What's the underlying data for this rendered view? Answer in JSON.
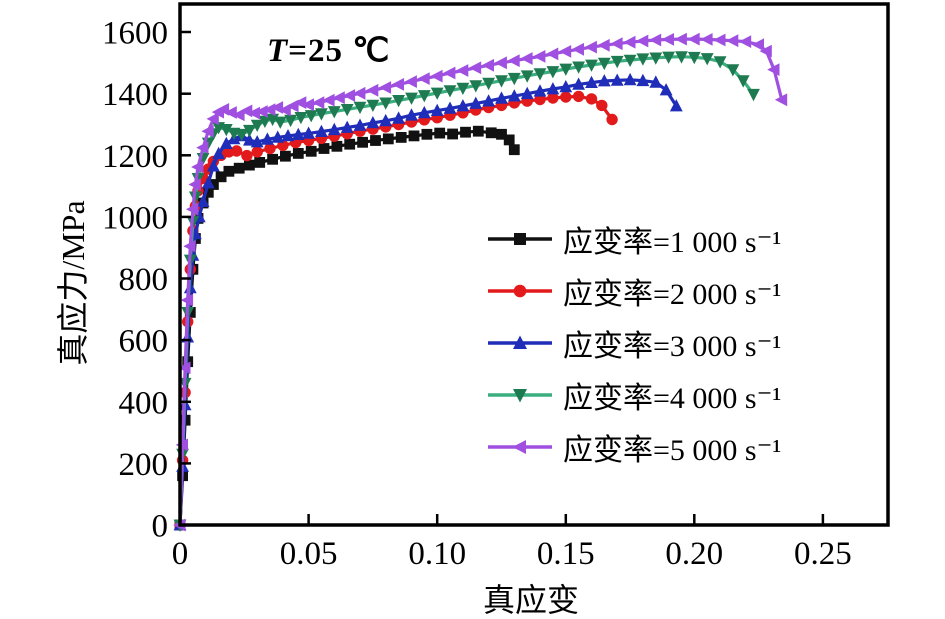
{
  "figure": {
    "annotation": {
      "t": "T",
      "rest": "=25 ℃"
    }
  },
  "chart_data": {
    "type": "line",
    "title": "",
    "annotation": "T=25 ℃",
    "xlabel": "真应变",
    "ylabel": "真应力/MPa",
    "xlim": [
      0,
      0.2753
    ],
    "ylim": [
      0,
      1691
    ],
    "grid": false,
    "legend_position": "center-right",
    "x_ticks": [
      0,
      0.05,
      0.1,
      0.15,
      0.2,
      0.25
    ],
    "x_tick_labels": [
      "0",
      "0.05",
      "0.10",
      "0.15",
      "0.20",
      "0.25"
    ],
    "y_ticks": [
      0,
      200,
      400,
      600,
      800,
      1000,
      1200,
      1400,
      1600
    ],
    "y_tick_labels": [
      "0",
      "200",
      "400",
      "600",
      "800",
      "1000",
      "1200",
      "1400",
      "1600"
    ],
    "series": [
      {
        "name": "strain-rate-1000",
        "label": "应变率=1 000 s⁻¹",
        "color": "#111111",
        "marker": "square",
        "marker_color": "#111111",
        "points": [
          [
            0,
            0
          ],
          [
            0.001,
            160
          ],
          [
            0.002,
            340
          ],
          [
            0.003,
            530
          ],
          [
            0.004,
            690
          ],
          [
            0.005,
            830
          ],
          [
            0.006,
            930
          ],
          [
            0.007,
            995
          ],
          [
            0.009,
            1045
          ],
          [
            0.011,
            1080
          ],
          [
            0.013,
            1105
          ],
          [
            0.016,
            1130
          ],
          [
            0.019,
            1148
          ],
          [
            0.023,
            1158
          ],
          [
            0.027,
            1168
          ],
          [
            0.031,
            1177
          ],
          [
            0.036,
            1187
          ],
          [
            0.041,
            1197
          ],
          [
            0.046,
            1206
          ],
          [
            0.051,
            1213
          ],
          [
            0.056,
            1222
          ],
          [
            0.061,
            1229
          ],
          [
            0.066,
            1236
          ],
          [
            0.071,
            1242
          ],
          [
            0.076,
            1248
          ],
          [
            0.081,
            1253
          ],
          [
            0.086,
            1258
          ],
          [
            0.091,
            1263
          ],
          [
            0.096,
            1268
          ],
          [
            0.101,
            1272
          ],
          [
            0.106,
            1269
          ],
          [
            0.111,
            1275
          ],
          [
            0.116,
            1278
          ],
          [
            0.121,
            1273
          ],
          [
            0.125,
            1268
          ],
          [
            0.128,
            1250
          ],
          [
            0.13,
            1218
          ]
        ]
      },
      {
        "name": "strain-rate-2000",
        "label": "应变率=2 000 s⁻¹",
        "color": "#e31a1c",
        "marker": "circle",
        "marker_color": "#e31a1c",
        "points": [
          [
            0,
            0
          ],
          [
            0.001,
            210
          ],
          [
            0.002,
            430
          ],
          [
            0.003,
            660
          ],
          [
            0.004,
            830
          ],
          [
            0.005,
            955
          ],
          [
            0.006,
            1035
          ],
          [
            0.007,
            1085
          ],
          [
            0.009,
            1125
          ],
          [
            0.011,
            1155
          ],
          [
            0.013,
            1180
          ],
          [
            0.016,
            1200
          ],
          [
            0.019,
            1211
          ],
          [
            0.022,
            1214
          ],
          [
            0.026,
            1199
          ],
          [
            0.03,
            1211
          ],
          [
            0.035,
            1222
          ],
          [
            0.04,
            1232
          ],
          [
            0.045,
            1241
          ],
          [
            0.05,
            1248
          ],
          [
            0.055,
            1255
          ],
          [
            0.06,
            1262
          ],
          [
            0.065,
            1270
          ],
          [
            0.07,
            1278
          ],
          [
            0.075,
            1285
          ],
          [
            0.08,
            1292
          ],
          [
            0.085,
            1300
          ],
          [
            0.09,
            1308
          ],
          [
            0.095,
            1315
          ],
          [
            0.1,
            1322
          ],
          [
            0.105,
            1330
          ],
          [
            0.11,
            1338
          ],
          [
            0.115,
            1347
          ],
          [
            0.12,
            1355
          ],
          [
            0.125,
            1362
          ],
          [
            0.13,
            1370
          ],
          [
            0.135,
            1376
          ],
          [
            0.14,
            1381
          ],
          [
            0.145,
            1386
          ],
          [
            0.15,
            1389
          ],
          [
            0.155,
            1391
          ],
          [
            0.16,
            1383
          ],
          [
            0.164,
            1362
          ],
          [
            0.168,
            1316
          ]
        ]
      },
      {
        "name": "strain-rate-3000",
        "label": "应变率=3 000 s⁻¹",
        "color": "#1f2db8",
        "marker": "triangle-up",
        "marker_color": "#1f2db8",
        "points": [
          [
            0,
            0
          ],
          [
            0.001,
            190
          ],
          [
            0.002,
            390
          ],
          [
            0.003,
            610
          ],
          [
            0.004,
            770
          ],
          [
            0.005,
            875
          ],
          [
            0.006,
            945
          ],
          [
            0.0075,
            1000
          ],
          [
            0.009,
            1050
          ],
          [
            0.011,
            1110
          ],
          [
            0.013,
            1165
          ],
          [
            0.015,
            1205
          ],
          [
            0.018,
            1238
          ],
          [
            0.021,
            1253
          ],
          [
            0.024,
            1263
          ],
          [
            0.027,
            1249
          ],
          [
            0.03,
            1243
          ],
          [
            0.034,
            1252
          ],
          [
            0.038,
            1258
          ],
          [
            0.042,
            1263
          ],
          [
            0.046,
            1267
          ],
          [
            0.05,
            1271
          ],
          [
            0.055,
            1277
          ],
          [
            0.06,
            1283
          ],
          [
            0.065,
            1290
          ],
          [
            0.07,
            1297
          ],
          [
            0.075,
            1305
          ],
          [
            0.08,
            1312
          ],
          [
            0.085,
            1320
          ],
          [
            0.09,
            1330
          ],
          [
            0.095,
            1338
          ],
          [
            0.1,
            1345
          ],
          [
            0.105,
            1352
          ],
          [
            0.11,
            1360
          ],
          [
            0.115,
            1368
          ],
          [
            0.12,
            1376
          ],
          [
            0.125,
            1385
          ],
          [
            0.13,
            1392
          ],
          [
            0.135,
            1400
          ],
          [
            0.14,
            1408
          ],
          [
            0.145,
            1415
          ],
          [
            0.15,
            1422
          ],
          [
            0.155,
            1430
          ],
          [
            0.16,
            1436
          ],
          [
            0.165,
            1441
          ],
          [
            0.17,
            1443
          ],
          [
            0.175,
            1445
          ],
          [
            0.18,
            1442
          ],
          [
            0.185,
            1437
          ],
          [
            0.189,
            1412
          ],
          [
            0.193,
            1360
          ]
        ]
      },
      {
        "name": "strain-rate-4000",
        "label": "应变率=4 000 s⁻¹",
        "color": "#3aae7e",
        "marker": "triangle-down",
        "marker_color": "#1e7a50",
        "points": [
          [
            0,
            0
          ],
          [
            0.001,
            230
          ],
          [
            0.002,
            460
          ],
          [
            0.003,
            690
          ],
          [
            0.004,
            860
          ],
          [
            0.005,
            985
          ],
          [
            0.006,
            1065
          ],
          [
            0.007,
            1125
          ],
          [
            0.009,
            1190
          ],
          [
            0.011,
            1240
          ],
          [
            0.013,
            1270
          ],
          [
            0.015,
            1290
          ],
          [
            0.018,
            1284
          ],
          [
            0.021,
            1272
          ],
          [
            0.024,
            1268
          ],
          [
            0.027,
            1281
          ],
          [
            0.03,
            1298
          ],
          [
            0.033,
            1311
          ],
          [
            0.036,
            1317
          ],
          [
            0.039,
            1308
          ],
          [
            0.043,
            1314
          ],
          [
            0.047,
            1323
          ],
          [
            0.051,
            1329
          ],
          [
            0.055,
            1335
          ],
          [
            0.06,
            1342
          ],
          [
            0.065,
            1349
          ],
          [
            0.07,
            1356
          ],
          [
            0.075,
            1363
          ],
          [
            0.08,
            1370
          ],
          [
            0.085,
            1378
          ],
          [
            0.09,
            1386
          ],
          [
            0.095,
            1394
          ],
          [
            0.1,
            1402
          ],
          [
            0.105,
            1410
          ],
          [
            0.11,
            1418
          ],
          [
            0.115,
            1426
          ],
          [
            0.12,
            1434
          ],
          [
            0.125,
            1442
          ],
          [
            0.13,
            1450
          ],
          [
            0.135,
            1458
          ],
          [
            0.14,
            1465
          ],
          [
            0.145,
            1472
          ],
          [
            0.15,
            1480
          ],
          [
            0.155,
            1487
          ],
          [
            0.16,
            1493
          ],
          [
            0.165,
            1499
          ],
          [
            0.17,
            1505
          ],
          [
            0.175,
            1509
          ],
          [
            0.18,
            1513
          ],
          [
            0.185,
            1516
          ],
          [
            0.19,
            1519
          ],
          [
            0.195,
            1520
          ],
          [
            0.2,
            1518
          ],
          [
            0.205,
            1514
          ],
          [
            0.21,
            1504
          ],
          [
            0.215,
            1478
          ],
          [
            0.219,
            1442
          ],
          [
            0.223,
            1398
          ]
        ]
      },
      {
        "name": "strain-rate-5000",
        "label": "应变率=5 000 s⁻¹",
        "color": "#a050e0",
        "marker": "triangle-left",
        "marker_color": "#a050e0",
        "points": [
          [
            0,
            0
          ],
          [
            0.001,
            260
          ],
          [
            0.002,
            510
          ],
          [
            0.003,
            730
          ],
          [
            0.004,
            905
          ],
          [
            0.005,
            1025
          ],
          [
            0.006,
            1105
          ],
          [
            0.007,
            1162
          ],
          [
            0.009,
            1225
          ],
          [
            0.011,
            1278
          ],
          [
            0.013,
            1318
          ],
          [
            0.015,
            1340
          ],
          [
            0.017,
            1349
          ],
          [
            0.02,
            1339
          ],
          [
            0.023,
            1331
          ],
          [
            0.026,
            1344
          ],
          [
            0.029,
            1337
          ],
          [
            0.032,
            1342
          ],
          [
            0.035,
            1348
          ],
          [
            0.038,
            1355
          ],
          [
            0.041,
            1347
          ],
          [
            0.044,
            1360
          ],
          [
            0.047,
            1371
          ],
          [
            0.05,
            1364
          ],
          [
            0.054,
            1371
          ],
          [
            0.058,
            1379
          ],
          [
            0.062,
            1387
          ],
          [
            0.066,
            1394
          ],
          [
            0.07,
            1401
          ],
          [
            0.075,
            1411
          ],
          [
            0.08,
            1420
          ],
          [
            0.085,
            1430
          ],
          [
            0.09,
            1439
          ],
          [
            0.095,
            1449
          ],
          [
            0.1,
            1457
          ],
          [
            0.105,
            1467
          ],
          [
            0.11,
            1475
          ],
          [
            0.115,
            1484
          ],
          [
            0.12,
            1492
          ],
          [
            0.125,
            1500
          ],
          [
            0.13,
            1507
          ],
          [
            0.135,
            1514
          ],
          [
            0.14,
            1521
          ],
          [
            0.145,
            1529
          ],
          [
            0.15,
            1537
          ],
          [
            0.155,
            1544
          ],
          [
            0.16,
            1551
          ],
          [
            0.165,
            1557
          ],
          [
            0.17,
            1562
          ],
          [
            0.175,
            1567
          ],
          [
            0.18,
            1571
          ],
          [
            0.185,
            1574
          ],
          [
            0.19,
            1576
          ],
          [
            0.195,
            1577
          ],
          [
            0.2,
            1577
          ],
          [
            0.205,
            1576
          ],
          [
            0.21,
            1574
          ],
          [
            0.215,
            1572
          ],
          [
            0.22,
            1569
          ],
          [
            0.225,
            1559
          ],
          [
            0.228,
            1538
          ],
          [
            0.231,
            1478
          ],
          [
            0.234,
            1380
          ]
        ]
      }
    ]
  }
}
